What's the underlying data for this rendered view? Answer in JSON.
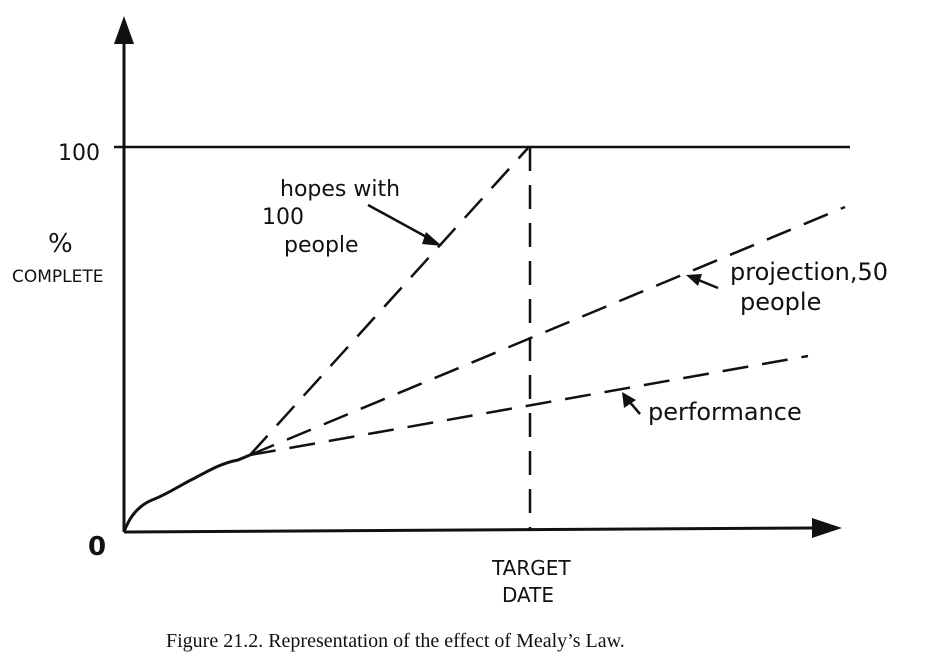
{
  "diagram": {
    "y_axis": {
      "label_line1": "%",
      "label_line2": "COMPLETE",
      "top_value": "100",
      "origin_value": "0"
    },
    "x_axis": {
      "label_line1": "TARGET",
      "label_line2": "DATE"
    },
    "annotations": {
      "hopes": [
        "hopes with",
        "100",
        "people"
      ],
      "projection": [
        "projection,50",
        "people"
      ],
      "performance": [
        "performance"
      ]
    }
  },
  "caption": "Figure 21.2.  Representation of the effect of Mealy’s Law."
}
